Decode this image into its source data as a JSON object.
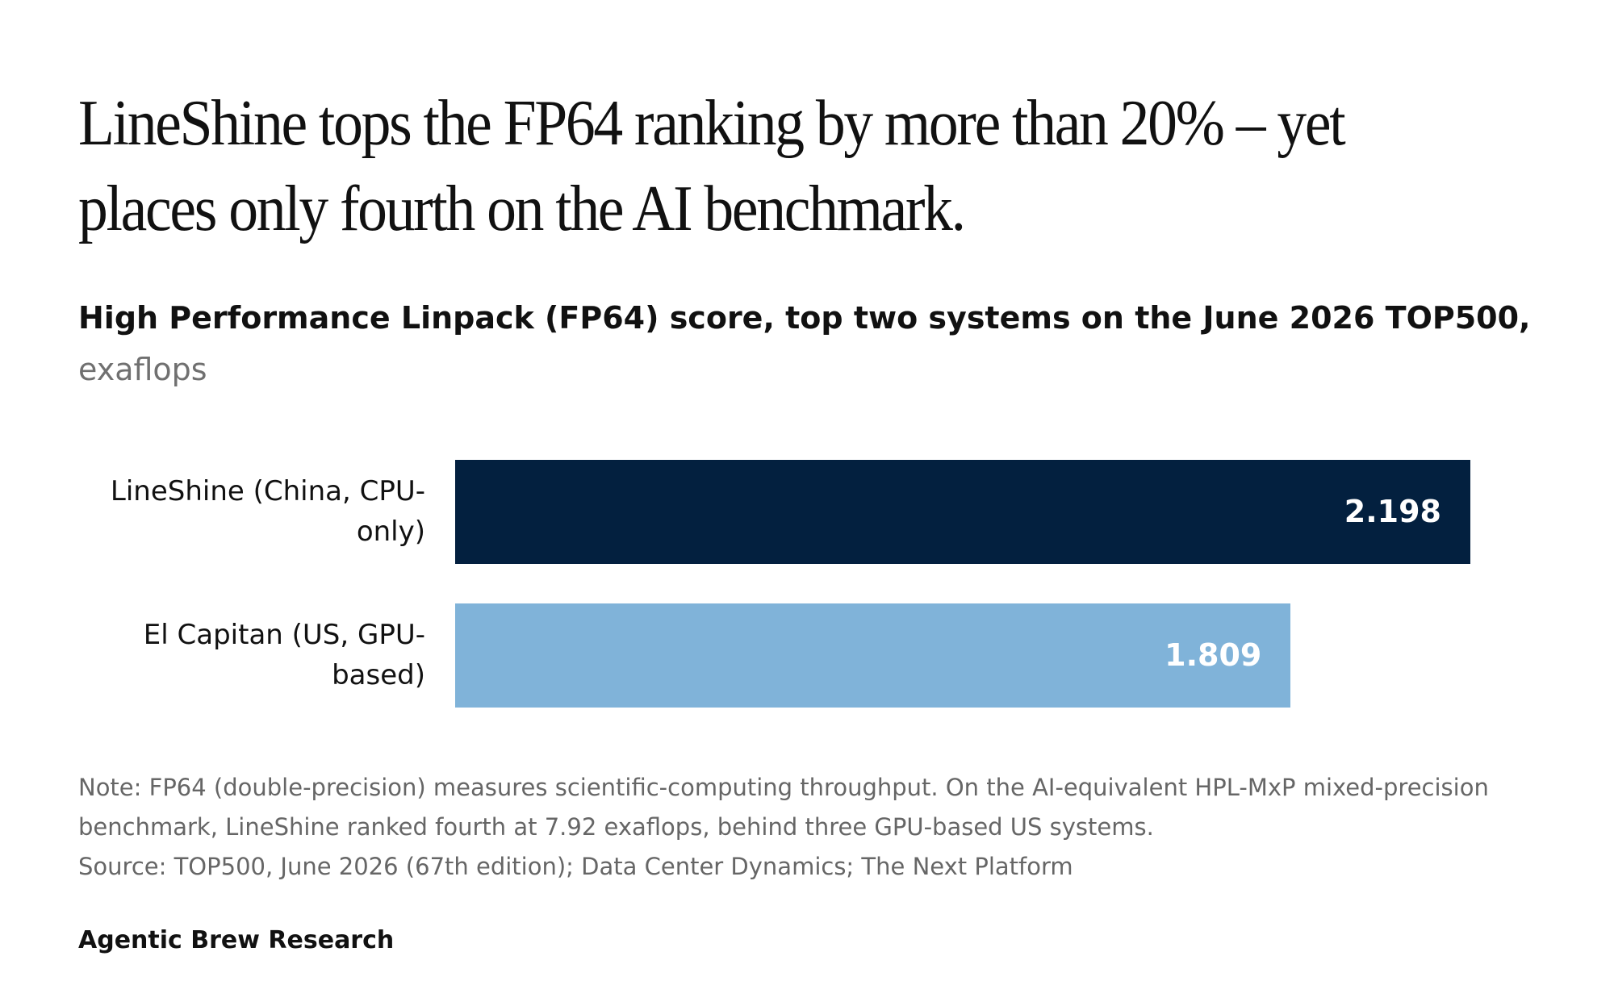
{
  "chart_data": {
    "type": "bar",
    "orientation": "horizontal",
    "title": "LineShine tops the FP64 ranking by more than 20% – yet places only fourth on the AI benchmark.",
    "subtitle": "High Performance Linpack (FP64) score, top two systems on the June 2026 TOP500,",
    "unit": "exaflops",
    "categories": [
      "LineShine (China, CPU-only)",
      "El Capitan (US, GPU-based)"
    ],
    "values": [
      2.198,
      1.809
    ],
    "colors": [
      "#03203f",
      "#80b3d9"
    ],
    "note": "Note: FP64 (double-precision) measures scientific-computing throughput. On the AI-equivalent HPL-MxP mixed-precision benchmark, LineShine ranked fourth at 7.92 exaflops, behind three GPU-based US systems.",
    "source": "Source: TOP500, June 2026 (67th edition); Data Center Dynamics; The Next Platform",
    "credit": "Agentic Brew Research"
  }
}
